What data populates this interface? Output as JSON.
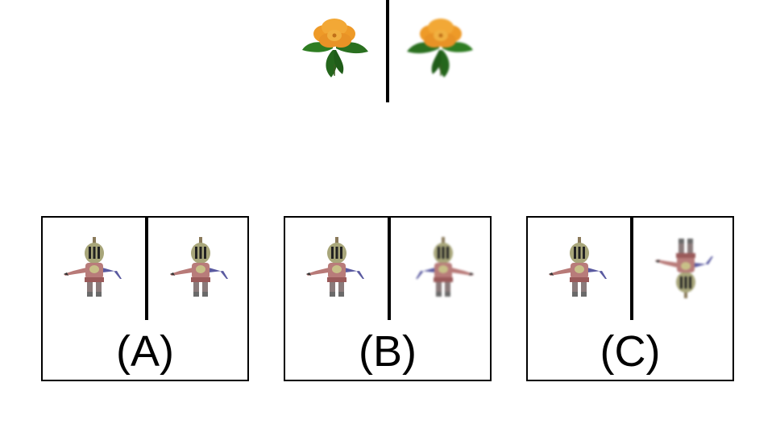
{
  "prompt": {
    "left_image": "flower-icon",
    "right_image": "flower-icon"
  },
  "options": [
    {
      "label": "(A)",
      "left_image": "knight-figure-icon",
      "right_image": "knight-figure-icon"
    },
    {
      "label": "(B)",
      "left_image": "knight-figure-icon",
      "right_image": "knight-figure-icon"
    },
    {
      "label": "(C)",
      "left_image": "knight-figure-icon",
      "right_image": "knight-figure-icon"
    }
  ],
  "colors": {
    "petal": "#f0a030",
    "leaf": "#2a6e22",
    "helmet": "#9a9a70",
    "body": "#b87a78",
    "arm": "#5a5a9a",
    "line": "#000000"
  }
}
